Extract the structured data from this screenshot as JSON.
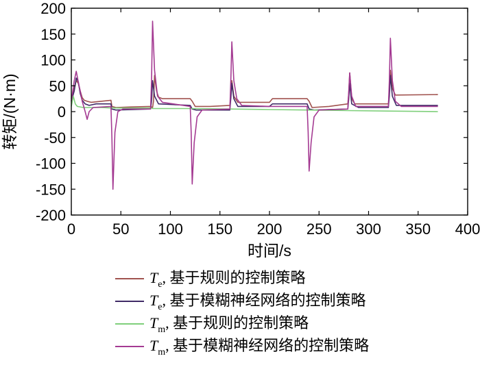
{
  "chart_data": {
    "type": "line",
    "xlabel": "时间/s",
    "ylabel": "转矩/(N·m)",
    "xlim": [
      0,
      400
    ],
    "ylim": [
      -200,
      200
    ],
    "x_ticks": [
      "0",
      "50",
      "100",
      "150",
      "200",
      "250",
      "300",
      "350",
      "400"
    ],
    "y_ticks": [
      "200",
      "150",
      "100",
      "50",
      "0",
      "-50",
      "-100",
      "-150",
      "-200"
    ],
    "grid": false,
    "legend_position": "bottom",
    "series": [
      {
        "name": "Te, 基于规则的控制策略",
        "symbol": "T",
        "subscript": "e",
        "label": ", 基于规则的控制策略",
        "color": "#a0524e",
        "points": [
          [
            0,
            25
          ],
          [
            3,
            45
          ],
          [
            5,
            60
          ],
          [
            7,
            55
          ],
          [
            9,
            40
          ],
          [
            11,
            27
          ],
          [
            13,
            22
          ],
          [
            16,
            20
          ],
          [
            20,
            18
          ],
          [
            30,
            20
          ],
          [
            40,
            22
          ],
          [
            41,
            10
          ],
          [
            45,
            8
          ],
          [
            60,
            9
          ],
          [
            80,
            10
          ],
          [
            82,
            8
          ],
          [
            83,
            20
          ],
          [
            84,
            70
          ],
          [
            86,
            40
          ],
          [
            88,
            28
          ],
          [
            92,
            25
          ],
          [
            120,
            25
          ],
          [
            122,
            20
          ],
          [
            125,
            10
          ],
          [
            140,
            10
          ],
          [
            160,
            12
          ],
          [
            161,
            30
          ],
          [
            162,
            60
          ],
          [
            164,
            30
          ],
          [
            168,
            18
          ],
          [
            200,
            18
          ],
          [
            203,
            25
          ],
          [
            238,
            25
          ],
          [
            240,
            20
          ],
          [
            243,
            8
          ],
          [
            260,
            10
          ],
          [
            279,
            15
          ],
          [
            280,
            35
          ],
          [
            281,
            75
          ],
          [
            283,
            25
          ],
          [
            286,
            15
          ],
          [
            320,
            15
          ],
          [
            321,
            40
          ],
          [
            322,
            80
          ],
          [
            324,
            45
          ],
          [
            327,
            32
          ],
          [
            370,
            33
          ]
        ]
      },
      {
        "name": "Te, 基于模糊神经网络的控制策略",
        "symbol": "T",
        "subscript": "e",
        "label": ", 基于模糊神经网络的控制策略",
        "color": "#3f2a66",
        "points": [
          [
            0,
            20
          ],
          [
            3,
            40
          ],
          [
            5,
            65
          ],
          [
            7,
            58
          ],
          [
            9,
            35
          ],
          [
            11,
            22
          ],
          [
            14,
            15
          ],
          [
            18,
            12
          ],
          [
            25,
            15
          ],
          [
            40,
            15
          ],
          [
            41,
            5
          ],
          [
            45,
            3
          ],
          [
            80,
            5
          ],
          [
            81,
            20
          ],
          [
            82,
            60
          ],
          [
            84,
            30
          ],
          [
            88,
            15
          ],
          [
            120,
            12
          ],
          [
            122,
            5
          ],
          [
            126,
            3
          ],
          [
            160,
            3
          ],
          [
            161,
            25
          ],
          [
            162,
            55
          ],
          [
            164,
            25
          ],
          [
            168,
            10
          ],
          [
            200,
            10
          ],
          [
            203,
            15
          ],
          [
            238,
            15
          ],
          [
            240,
            5
          ],
          [
            245,
            3
          ],
          [
            279,
            5
          ],
          [
            280,
            25
          ],
          [
            281,
            55
          ],
          [
            283,
            15
          ],
          [
            290,
            8
          ],
          [
            320,
            8
          ],
          [
            321,
            30
          ],
          [
            322,
            70
          ],
          [
            324,
            30
          ],
          [
            328,
            12
          ],
          [
            370,
            12
          ]
        ]
      },
      {
        "name": "Tm, 基于规则的控制策略",
        "symbol": "T",
        "subscript": "m",
        "label": ", 基于规则的控制策略",
        "color": "#7ecf7a",
        "points": [
          [
            0,
            10
          ],
          [
            2,
            30
          ],
          [
            4,
            15
          ],
          [
            6,
            10
          ],
          [
            12,
            8
          ],
          [
            30,
            8
          ],
          [
            40,
            7
          ],
          [
            60,
            7
          ],
          [
            81,
            7
          ],
          [
            82,
            6
          ],
          [
            84,
            6
          ],
          [
            120,
            6
          ],
          [
            160,
            5
          ],
          [
            200,
            4
          ],
          [
            240,
            3
          ],
          [
            280,
            2
          ],
          [
            320,
            1
          ],
          [
            370,
            0
          ]
        ]
      },
      {
        "name": "Tm, 基于模糊神经网络的控制策略",
        "symbol": "T",
        "subscript": "m",
        "label": ", 基于模糊神经网络的控制策略",
        "color": "#a43a92",
        "points": [
          [
            0,
            20
          ],
          [
            3,
            60
          ],
          [
            5,
            78
          ],
          [
            7,
            58
          ],
          [
            9,
            40
          ],
          [
            11,
            20
          ],
          [
            14,
            0
          ],
          [
            16,
            -15
          ],
          [
            18,
            0
          ],
          [
            22,
            8
          ],
          [
            40,
            10
          ],
          [
            41,
            -50
          ],
          [
            42,
            -150
          ],
          [
            44,
            -40
          ],
          [
            47,
            0
          ],
          [
            52,
            5
          ],
          [
            80,
            5
          ],
          [
            81,
            60
          ],
          [
            82,
            175
          ],
          [
            84,
            80
          ],
          [
            87,
            30
          ],
          [
            92,
            18
          ],
          [
            120,
            10
          ],
          [
            121,
            -40
          ],
          [
            122,
            -140
          ],
          [
            124,
            -60
          ],
          [
            127,
            -10
          ],
          [
            132,
            3
          ],
          [
            160,
            5
          ],
          [
            161,
            60
          ],
          [
            162,
            135
          ],
          [
            164,
            60
          ],
          [
            167,
            25
          ],
          [
            172,
            12
          ],
          [
            200,
            10
          ],
          [
            238,
            10
          ],
          [
            239,
            -40
          ],
          [
            240,
            -115
          ],
          [
            242,
            -60
          ],
          [
            245,
            -10
          ],
          [
            250,
            3
          ],
          [
            279,
            5
          ],
          [
            280,
            40
          ],
          [
            281,
            75
          ],
          [
            283,
            30
          ],
          [
            287,
            10
          ],
          [
            320,
            10
          ],
          [
            321,
            60
          ],
          [
            322,
            142
          ],
          [
            324,
            60
          ],
          [
            327,
            20
          ],
          [
            333,
            10
          ],
          [
            370,
            10
          ]
        ]
      }
    ]
  }
}
